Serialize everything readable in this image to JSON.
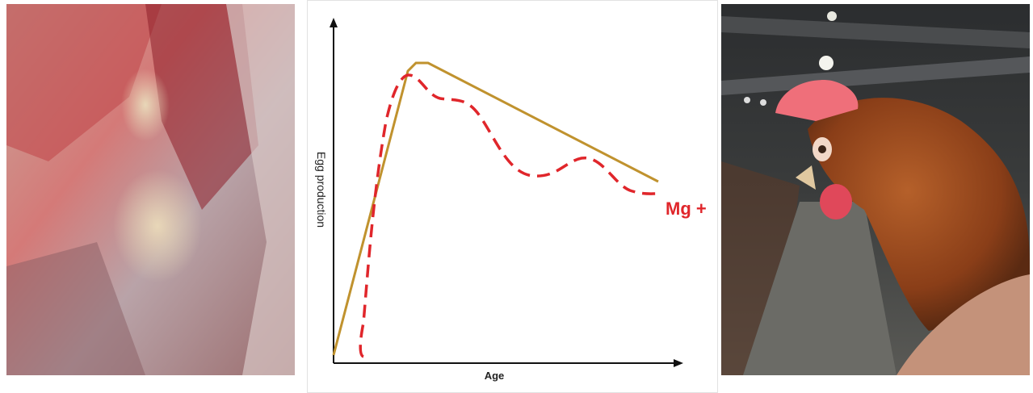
{
  "panels": {
    "chart": {
      "y_label": "Egg production",
      "x_label": "Age",
      "series_label": "Mg +"
    }
  }
}
